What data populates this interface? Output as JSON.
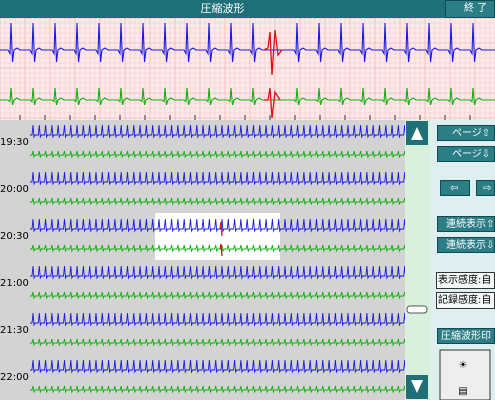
{
  "header": {
    "title": "圧縮波形",
    "close": "終 了"
  },
  "trend": {
    "times": [
      "19:30",
      "20:00",
      "20:30",
      "21:00",
      "21:30",
      "22:00"
    ]
  },
  "side": {
    "page_up": "ページ⇧",
    "page_down": "ページ⇩",
    "left": "⇦",
    "right": "⇨",
    "cont_up": "連続表示⇧",
    "cont_down": "連続表示⇩",
    "display_sens": "表示感度:自",
    "record_sens": "記録感度:自",
    "print": "圧縮波形印"
  }
}
